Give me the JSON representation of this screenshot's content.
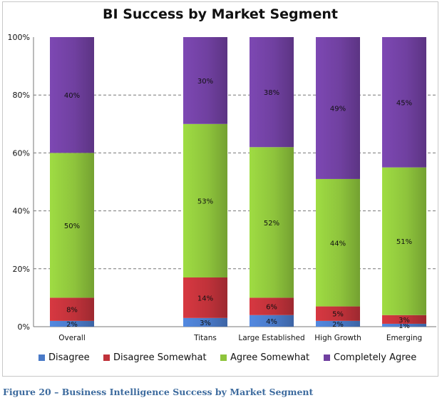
{
  "title": "BI Success by Market Segment",
  "caption": "Figure 20 – Business Intelligence Success by Market Segment",
  "chart_data": {
    "type": "bar",
    "stacked": true,
    "title": "BI Success by Market Segment",
    "categories": [
      "Overall",
      "",
      "Titans",
      "Large Established",
      "High Growth",
      "Emerging"
    ],
    "yticks": [
      "0%",
      "20%",
      "40%",
      "60%",
      "80%",
      "100%"
    ],
    "ylim": [
      0,
      100
    ],
    "grid": true,
    "legend_position": "bottom",
    "series": [
      {
        "name": "Disagree",
        "color": "#4a7ac8",
        "values": [
          2,
          null,
          3,
          4,
          2,
          1
        ],
        "labels": [
          "2%",
          "",
          "3%",
          "4%",
          "2%",
          "1%"
        ]
      },
      {
        "name": "Disagree Somewhat",
        "color": "#c0323a",
        "values": [
          8,
          null,
          14,
          6,
          5,
          3
        ],
        "labels": [
          "8%",
          "",
          "14%",
          "6%",
          "5%",
          "3%"
        ]
      },
      {
        "name": "Agree Somewhat",
        "color": "#8ec43c",
        "values": [
          50,
          null,
          53,
          52,
          44,
          51
        ],
        "labels": [
          "50%",
          "",
          "53%",
          "52%",
          "44%",
          "51%"
        ]
      },
      {
        "name": "Completely Agree",
        "color": "#7040a0",
        "values": [
          40,
          null,
          30,
          38,
          49,
          45
        ],
        "labels": [
          "40%",
          "",
          "30%",
          "38%",
          "49%",
          "45%"
        ]
      }
    ]
  }
}
